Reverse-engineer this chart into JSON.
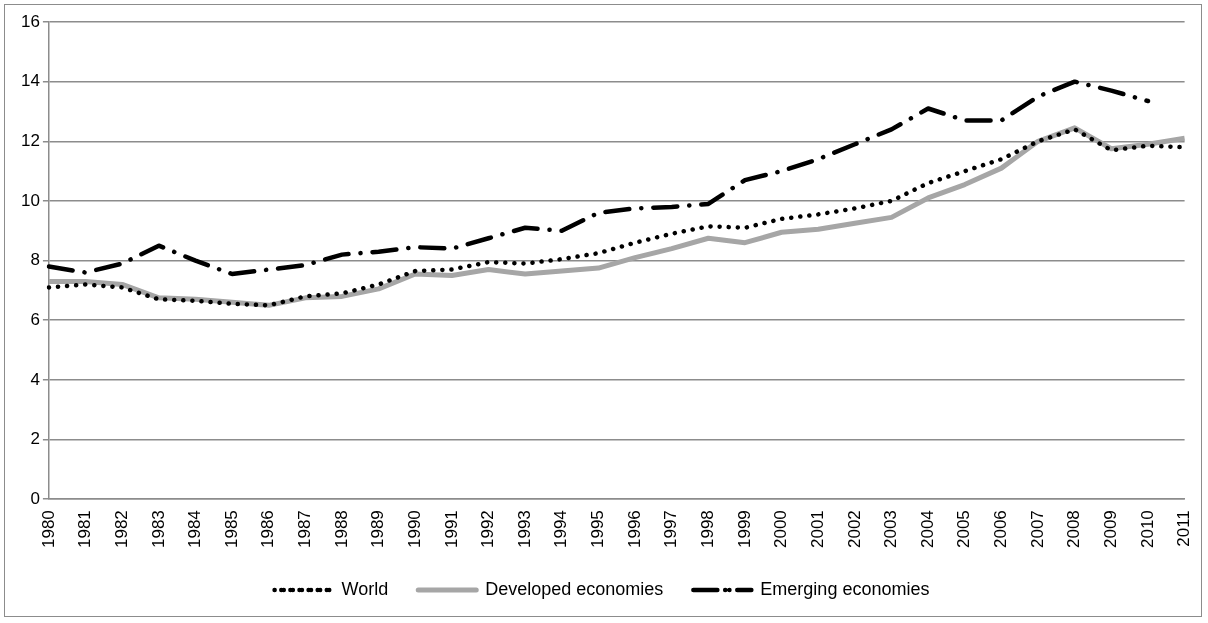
{
  "chart_data": {
    "type": "line",
    "categories": [
      "1980",
      "1981",
      "1982",
      "1983",
      "1984",
      "1985",
      "1986",
      "1987",
      "1988",
      "1989",
      "1990",
      "1991",
      "1992",
      "1993",
      "1994",
      "1995",
      "1996",
      "1997",
      "1998",
      "1999",
      "2000",
      "2001",
      "2002",
      "2003",
      "2004",
      "2005",
      "2006",
      "2007",
      "2008",
      "2009",
      "2010",
      "2011"
    ],
    "series": [
      {
        "name": "World",
        "color": "#000000",
        "line_style": "dotted",
        "values": [
          7.1,
          7.2,
          7.1,
          6.7,
          6.65,
          6.55,
          6.5,
          6.8,
          6.9,
          7.2,
          7.65,
          7.7,
          7.95,
          7.9,
          8.05,
          8.25,
          8.6,
          8.9,
          9.15,
          9.1,
          9.4,
          9.55,
          9.75,
          10.0,
          10.6,
          11.0,
          11.4,
          12.0,
          12.4,
          11.7,
          11.85,
          11.8
        ]
      },
      {
        "name": "Developed economies",
        "color": "#a6a6a6",
        "line_style": "solid",
        "values": [
          7.3,
          7.3,
          7.2,
          6.75,
          6.7,
          6.6,
          6.5,
          6.75,
          6.8,
          7.05,
          7.55,
          7.5,
          7.7,
          7.55,
          7.65,
          7.75,
          8.1,
          8.4,
          8.75,
          8.6,
          8.95,
          9.05,
          9.25,
          9.45,
          10.1,
          10.55,
          11.1,
          12.0,
          12.45,
          11.75,
          11.9,
          12.1
        ]
      },
      {
        "name": "Emerging economies",
        "color": "#000000",
        "line_style": "dashed",
        "values": [
          7.8,
          7.6,
          7.9,
          8.5,
          8.0,
          7.55,
          7.7,
          7.85,
          8.2,
          8.3,
          8.45,
          8.4,
          8.75,
          9.1,
          9.0,
          9.6,
          9.75,
          9.8,
          9.9,
          10.7,
          11.0,
          11.4,
          11.9,
          12.4,
          13.1,
          12.7,
          12.7,
          13.5,
          14.0,
          13.7,
          13.35,
          null
        ]
      }
    ],
    "ylim": [
      0,
      16
    ],
    "yticks": [
      0,
      2,
      4,
      6,
      8,
      10,
      12,
      14,
      16
    ],
    "grid": "y",
    "legend": "bottom",
    "marker": "none"
  }
}
